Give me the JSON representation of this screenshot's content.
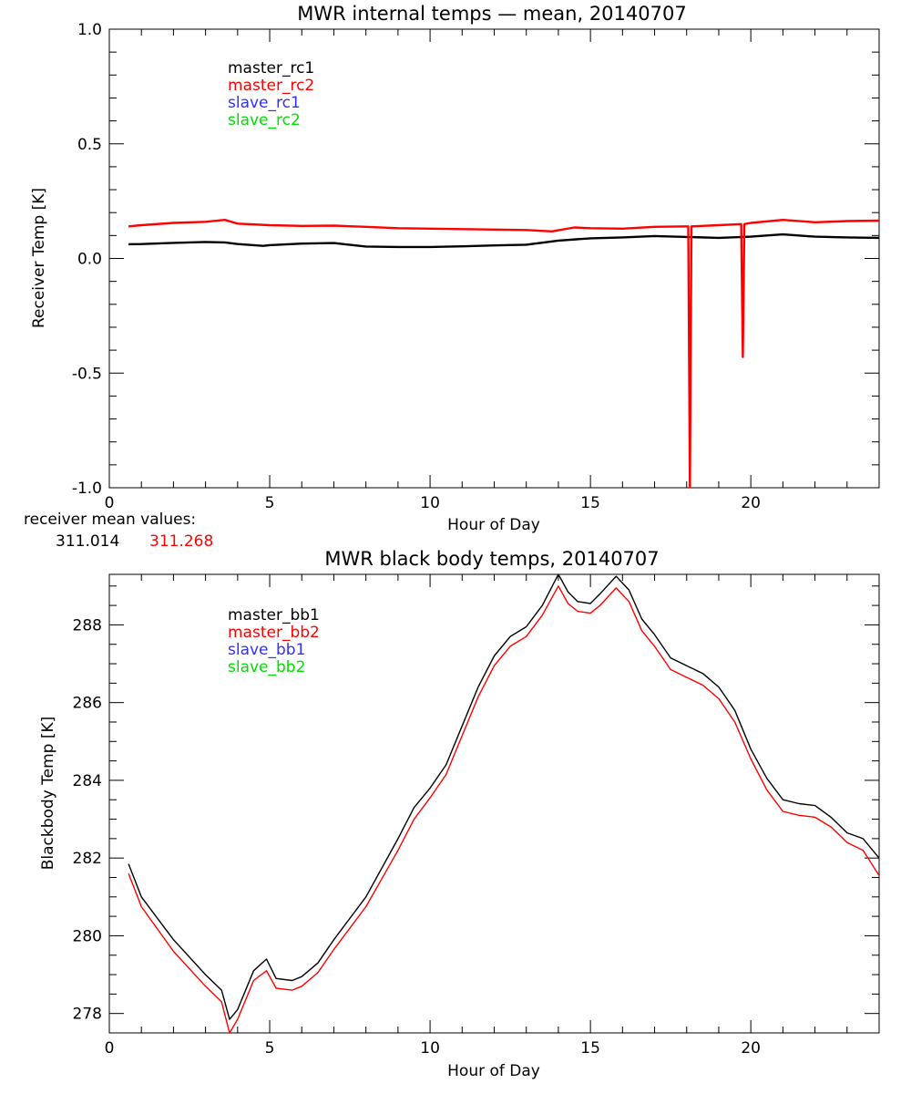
{
  "chart_data": [
    {
      "type": "line",
      "title": "MWR internal temps — mean, 20140707",
      "xlabel": "Hour of Day",
      "ylabel": "Receiver Temp [K]",
      "xlim": [
        0,
        24
      ],
      "ylim": [
        -1.0,
        1.0
      ],
      "xticks": [
        0,
        5,
        10,
        15,
        20
      ],
      "yticks": [
        1.0,
        0.5,
        0.0,
        -0.5,
        -1.0
      ],
      "ytick_labels": [
        "1.0",
        "0.5",
        "0.0",
        "-0.5",
        "-1.0"
      ],
      "legend_position": "top-left",
      "series": [
        {
          "name": "master_rc1",
          "color": "#000000",
          "x": [
            0.6,
            1,
            2,
            3,
            3.6,
            4,
            4.8,
            5,
            6,
            7,
            8,
            9,
            10,
            11,
            12,
            13,
            14,
            15,
            16,
            17,
            18,
            19,
            20,
            21,
            22,
            23,
            24
          ],
          "y": [
            0.062,
            0.063,
            0.068,
            0.072,
            0.07,
            0.063,
            0.055,
            0.058,
            0.065,
            0.067,
            0.052,
            0.05,
            0.05,
            0.053,
            0.057,
            0.06,
            0.078,
            0.088,
            0.092,
            0.098,
            0.094,
            0.09,
            0.095,
            0.105,
            0.095,
            0.092,
            0.09
          ]
        },
        {
          "name": "master_rc2",
          "color": "#ff0000",
          "x": [
            0.6,
            1,
            2,
            3,
            3.6,
            4,
            5,
            6,
            7,
            8,
            9,
            10,
            11,
            12,
            13,
            13.8,
            14.5,
            15,
            16,
            17,
            18,
            18.05,
            18.1,
            18.15,
            19,
            19.7,
            19.75,
            19.8,
            20,
            21,
            22,
            23,
            24
          ],
          "y": [
            0.14,
            0.145,
            0.155,
            0.16,
            0.168,
            0.152,
            0.145,
            0.142,
            0.143,
            0.138,
            0.132,
            0.13,
            0.128,
            0.126,
            0.124,
            0.118,
            0.135,
            0.132,
            0.13,
            0.138,
            0.14,
            0.14,
            -1.0,
            0.14,
            0.145,
            0.15,
            -0.43,
            0.15,
            0.155,
            0.168,
            0.158,
            0.163,
            0.165
          ]
        }
      ],
      "legend_extra": [
        {
          "name": "slave_rc1",
          "color": "#3030ff"
        },
        {
          "name": "slave_rc2",
          "color": "#00e000"
        }
      ]
    },
    {
      "type": "line",
      "title": "MWR black body temps, 20140707",
      "xlabel": "Hour of Day",
      "ylabel": "Blackbody Temp [K]",
      "xlim": [
        0,
        24
      ],
      "ylim": [
        277.5,
        289.3
      ],
      "xticks": [
        0,
        5,
        10,
        15,
        20
      ],
      "yticks": [
        278,
        280,
        282,
        284,
        286,
        288
      ],
      "ytick_labels": [
        "278",
        "280",
        "282",
        "284",
        "286",
        "288"
      ],
      "legend_position": "top-left",
      "series": [
        {
          "name": "master_bb1",
          "color": "#000000",
          "x": [
            0.6,
            1,
            2,
            3,
            3.5,
            3.75,
            4,
            4.5,
            4.9,
            5.2,
            5.7,
            6,
            6.5,
            7,
            8,
            9,
            9.5,
            10,
            10.5,
            11,
            11.5,
            12,
            12.5,
            13,
            13.5,
            14,
            14.3,
            14.6,
            15,
            15.3,
            15.8,
            16.2,
            16.6,
            17,
            17.5,
            18,
            18.5,
            19,
            19.5,
            20,
            20.5,
            21,
            21.5,
            22,
            22.5,
            23,
            23.5,
            24
          ],
          "y": [
            281.85,
            281.0,
            279.9,
            279.0,
            278.6,
            277.85,
            278.1,
            279.1,
            279.4,
            278.9,
            278.85,
            278.95,
            279.3,
            279.9,
            281.0,
            282.5,
            283.3,
            283.8,
            284.4,
            285.4,
            286.4,
            287.2,
            287.7,
            287.95,
            288.5,
            289.3,
            288.85,
            288.6,
            288.55,
            288.8,
            289.25,
            288.9,
            288.15,
            287.75,
            287.15,
            286.95,
            286.75,
            286.4,
            285.8,
            284.8,
            284.05,
            283.5,
            283.4,
            283.35,
            283.05,
            282.65,
            282.5,
            282.0
          ]
        },
        {
          "name": "master_bb2",
          "color": "#ff0000",
          "x": [
            0.6,
            1,
            2,
            3,
            3.5,
            3.75,
            4,
            4.5,
            4.9,
            5.2,
            5.7,
            6,
            6.5,
            7,
            8,
            9,
            9.5,
            10,
            10.5,
            11,
            11.5,
            12,
            12.5,
            13,
            13.5,
            14,
            14.3,
            14.6,
            15,
            15.3,
            15.8,
            16.2,
            16.6,
            17,
            17.5,
            18,
            18.5,
            19,
            19.5,
            20,
            20.5,
            21,
            21.5,
            22,
            22.5,
            23,
            23.5,
            24
          ],
          "y": [
            281.6,
            280.75,
            279.6,
            278.7,
            278.3,
            277.5,
            277.85,
            278.85,
            279.1,
            278.65,
            278.6,
            278.7,
            279.05,
            279.65,
            280.75,
            282.2,
            283.0,
            283.55,
            284.15,
            285.15,
            286.15,
            286.95,
            287.45,
            287.7,
            288.25,
            289.0,
            288.55,
            288.35,
            288.3,
            288.5,
            288.95,
            288.6,
            287.85,
            287.45,
            286.85,
            286.65,
            286.45,
            286.1,
            285.5,
            284.55,
            283.75,
            283.2,
            283.1,
            283.05,
            282.8,
            282.4,
            282.2,
            281.55
          ]
        }
      ],
      "legend_extra": [
        {
          "name": "slave_bb1",
          "color": "#3030ff"
        },
        {
          "name": "slave_bb2",
          "color": "#00e000"
        }
      ]
    }
  ],
  "receiver_note": {
    "label": "receiver mean values:",
    "value1": "311.014",
    "value1_color": "#000000",
    "value2": "311.268",
    "value2_color": "#ff0000"
  }
}
